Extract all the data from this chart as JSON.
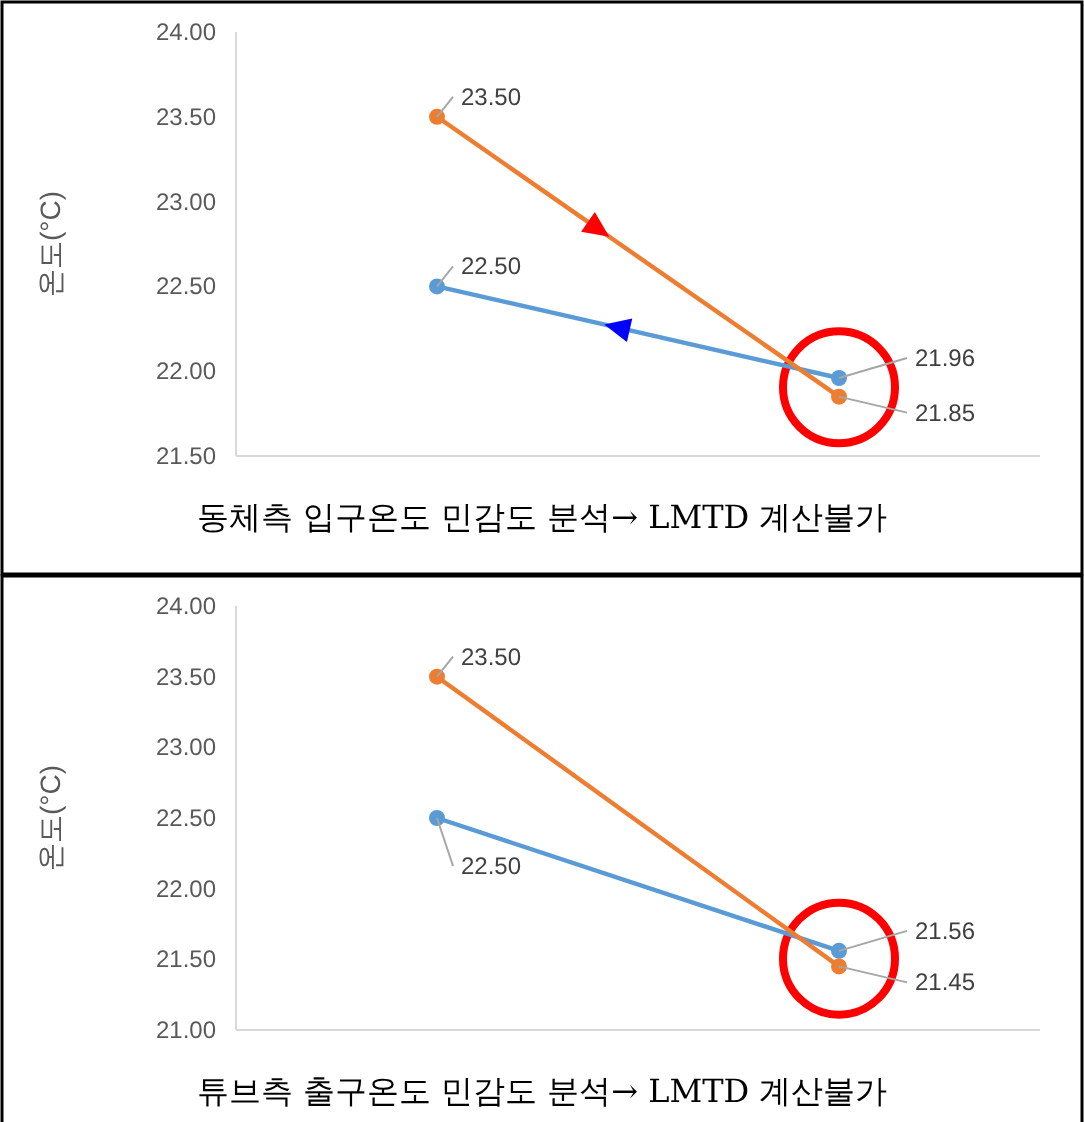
{
  "chart_data": [
    {
      "type": "line",
      "ylabel": "온도(°C)",
      "categories": [
        null,
        null
      ],
      "ylim": [
        21.5,
        24
      ],
      "yticks": [
        {
          "value": 21.5,
          "label": "21.50"
        },
        {
          "value": 22,
          "label": "22.00"
        },
        {
          "value": 22.5,
          "label": "22.50"
        },
        {
          "value": 23,
          "label": "23.00"
        },
        {
          "value": 23.5,
          "label": "23.50"
        },
        {
          "value": 24,
          "label": "24.00"
        }
      ],
      "grid": false,
      "marker": "circle",
      "series": [
        {
          "color": "#5b9bd5",
          "values": [
            22.5,
            21.96
          ],
          "value_labels": [
            "22.50",
            "21.96"
          ]
        },
        {
          "color": "#ed7d31",
          "values": [
            23.5,
            21.85
          ],
          "value_labels": [
            "23.50",
            "21.85"
          ]
        }
      ],
      "annotations": [
        "동체측 입구온도 민감도 분석→ LMTD 계산불가"
      ]
    },
    {
      "type": "line",
      "ylabel": "온도(°C)",
      "categories": [
        null,
        null
      ],
      "ylim": [
        21,
        24
      ],
      "yticks": [
        {
          "value": 21,
          "label": "21.00"
        },
        {
          "value": 21.5,
          "label": "21.50"
        },
        {
          "value": 22,
          "label": "22.00"
        },
        {
          "value": 22.5,
          "label": "22.50"
        },
        {
          "value": 23,
          "label": "23.00"
        },
        {
          "value": 23.5,
          "label": "23.50"
        },
        {
          "value": 24,
          "label": "24.00"
        }
      ],
      "grid": false,
      "marker": "circle",
      "series": [
        {
          "color": "#5b9bd5",
          "values": [
            22.5,
            21.56
          ],
          "value_labels": [
            "22.50",
            "21.56"
          ]
        },
        {
          "color": "#ed7d31",
          "values": [
            23.5,
            21.45
          ],
          "value_labels": [
            "23.50",
            "21.45"
          ]
        }
      ],
      "annotations": [
        "튜브측 출구온도 민감도 분석→ LMTD 계산불가"
      ]
    }
  ]
}
